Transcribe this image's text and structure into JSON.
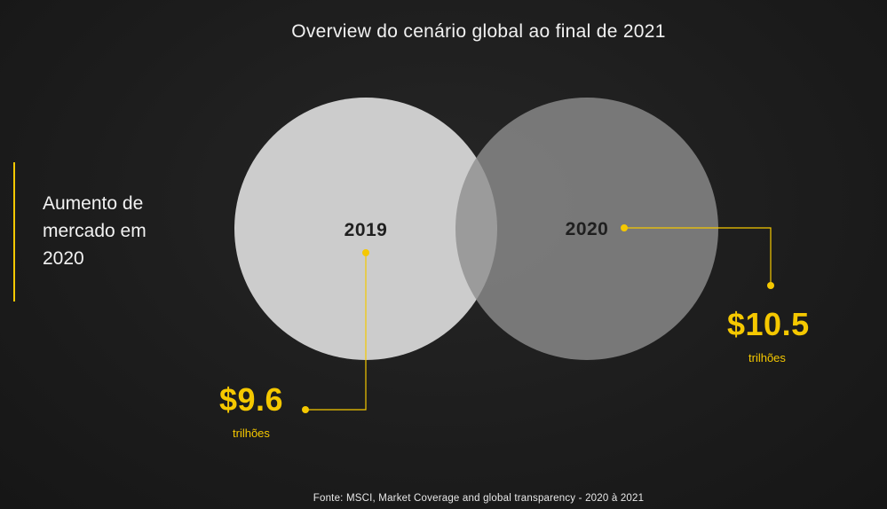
{
  "title": "Overview do cenário global ao final de 2021",
  "side_label": "Aumento de mercado em 2020",
  "colors": {
    "accent": "#f5c800",
    "circle_2019": "#d6d6d6",
    "circle_2020": "#9a9a9a",
    "background": "#1f1f1f"
  },
  "circles": [
    {
      "label": "2019",
      "value": "$9.6",
      "unit": "trilhões"
    },
    {
      "label": "2020",
      "value": "$10.5",
      "unit": "trilhões"
    }
  ],
  "source": "Fonte: MSCI, Market Coverage and global transparency - 2020 à 2021"
}
